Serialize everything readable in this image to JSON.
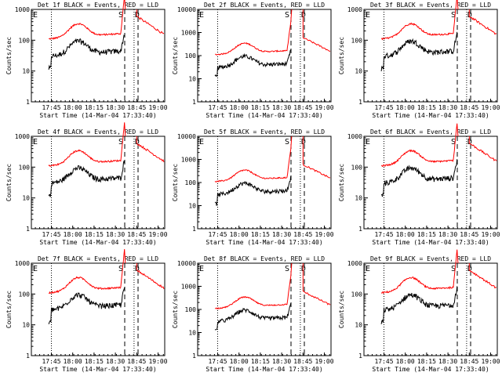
{
  "chart_data": {
    "type": "line",
    "scale": "log",
    "ylim": [
      1,
      1000
    ],
    "ylim_big": [
      1,
      10000
    ],
    "x_ticks": [
      "17:45",
      "18:00",
      "18:15",
      "18:30",
      "18:45",
      "19:00"
    ],
    "y_ticks_small": [
      "1",
      "10",
      "100",
      "1000"
    ],
    "y_ticks_big": [
      "1",
      "10",
      "100",
      "1000",
      "10000"
    ],
    "xlabel": "Start Time (14-Mar-04 17:33:40)",
    "ylabel": "Counts/sec",
    "colors": {
      "events": "#000000",
      "lld": "#ff0000",
      "axes": "#000000"
    },
    "markers": {
      "e": "E",
      "s": "S",
      "d": "D"
    },
    "panels": [
      {
        "title": "Det 1f BLACK = Events, RED = LLD",
        "big": false
      },
      {
        "title": "Det 2f BLACK = Events, RED = LLD",
        "big": true
      },
      {
        "title": "Det 3f BLACK = Events, RED = LLD",
        "big": false
      },
      {
        "title": "Det 4f BLACK = Events, RED = LLD",
        "big": false
      },
      {
        "title": "Det 5f BLACK = Events, RED = LLD",
        "big": true
      },
      {
        "title": "Det 6f BLACK = Events, RED = LLD",
        "big": false
      },
      {
        "title": "Det 7f BLACK = Events, RED = LLD",
        "big": false
      },
      {
        "title": "Det 8f BLACK = Events, RED = LLD",
        "big": true
      },
      {
        "title": "Det 9f BLACK = Events, RED = LLD",
        "big": false
      }
    ]
  }
}
